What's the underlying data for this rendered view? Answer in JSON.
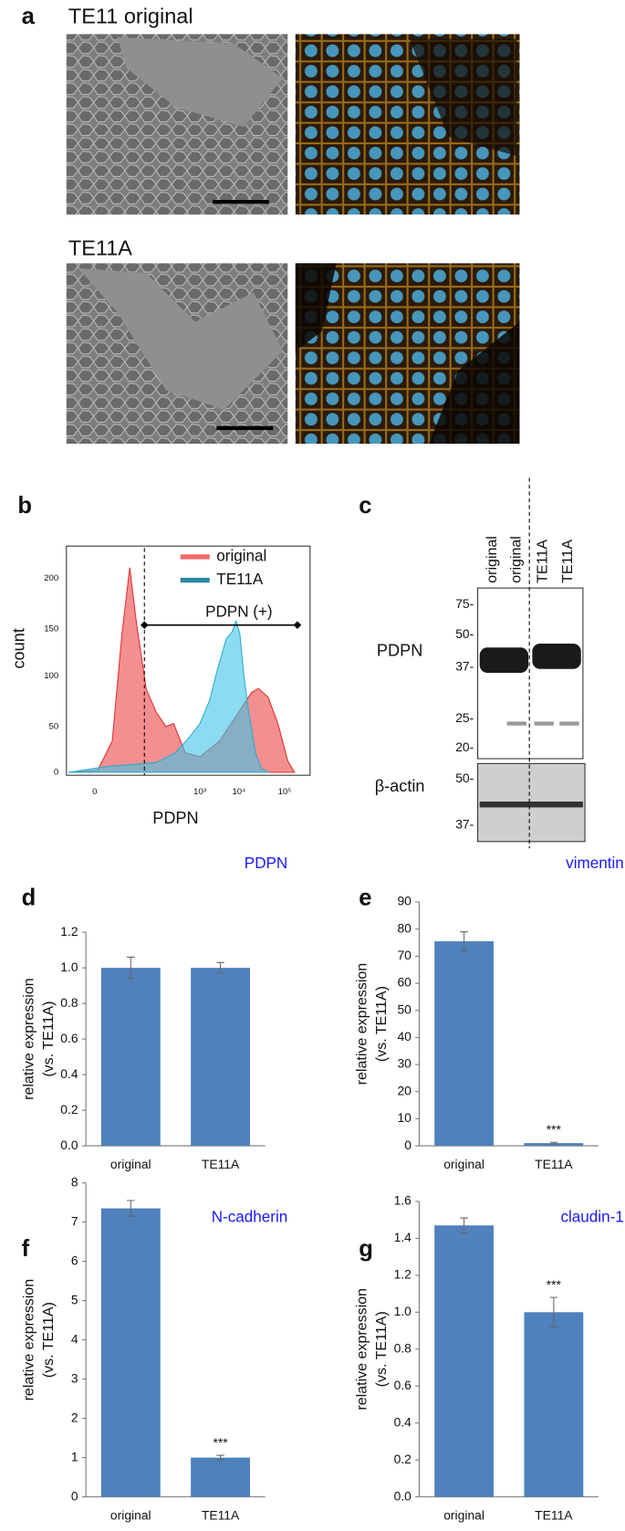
{
  "panels": {
    "a": {
      "label": "a",
      "rows": [
        {
          "title": "TE11 original"
        },
        {
          "title": "TE11A"
        }
      ]
    },
    "b": {
      "label": "b",
      "ylabel": "count",
      "xlabel": "PDPN",
      "yticks": [
        200,
        150,
        100,
        50,
        0
      ],
      "xtick_labels": [
        "0",
        "10³",
        "10⁴",
        "10⁵"
      ],
      "legend": [
        {
          "name": "original",
          "color": "#f06a6a"
        },
        {
          "name": "TE11A",
          "color": "#2a8aa0"
        }
      ],
      "annotation": "PDPN (+)"
    },
    "c": {
      "label": "c",
      "lanes": [
        "original",
        "original",
        "TE11A",
        "TE11A"
      ],
      "blots": [
        {
          "name": "PDPN",
          "markers": [
            "75-",
            "50-",
            "37-",
            "25-",
            "20-"
          ]
        },
        {
          "name": "β-actin",
          "markers": [
            "50-",
            "37-"
          ]
        }
      ]
    }
  },
  "chart_data": [
    {
      "type": "bar",
      "panel": "d",
      "title": "PDPN",
      "title_color": "#1a1aff",
      "ylabel": [
        "relative expression",
        "(vs. TE11A)"
      ],
      "categories": [
        "original",
        "TE11A"
      ],
      "values": [
        1.0,
        1.0
      ],
      "errors": [
        0.06,
        0.03
      ],
      "color": "#4f81bd",
      "ylim": [
        0,
        1.2
      ],
      "yticks": [
        {
          "value": 0,
          "label": "0.0"
        },
        0.2,
        0.4,
        0.6,
        0.8,
        {
          "value": 1,
          "label": "1.0"
        },
        1.2
      ]
    },
    {
      "type": "bar",
      "panel": "e",
      "title": "vimentin",
      "title_color": "#1a1aff",
      "ylabel": [
        "relative expression",
        "(vs. TE11A)"
      ],
      "categories": [
        "original",
        "TE11A"
      ],
      "values": [
        75.5,
        1.0
      ],
      "errors": [
        3.5,
        0.3
      ],
      "annotations": [
        null,
        "***"
      ],
      "color": "#4f81bd",
      "ylim": [
        0,
        90
      ],
      "yticks": [
        0,
        10,
        20,
        30,
        40,
        50,
        60,
        70,
        80,
        90
      ]
    },
    {
      "type": "bar",
      "panel": "f",
      "title": "N-cadherin",
      "title_color": "#1a1aff",
      "ylabel": [
        "relative expression",
        "(vs. TE11A)"
      ],
      "categories": [
        "original",
        "TE11A"
      ],
      "values": [
        7.35,
        1.0
      ],
      "errors": [
        0.2,
        0.06
      ],
      "annotations": [
        null,
        "***"
      ],
      "color": "#4f81bd",
      "ylim": [
        0,
        8
      ],
      "yticks": [
        0,
        1,
        2,
        3,
        4,
        5,
        6,
        7,
        8
      ]
    },
    {
      "type": "bar",
      "panel": "g",
      "title": "claudin-1",
      "title_color": "#1a1aff",
      "ylabel": [
        "relative expression",
        "(vs. TE11A)"
      ],
      "categories": [
        "original",
        "TE11A"
      ],
      "values": [
        1.47,
        1.0
      ],
      "errors": [
        0.04,
        0.08
      ],
      "annotations": [
        null,
        "***"
      ],
      "color": "#4f81bd",
      "ylim": [
        0,
        1.6
      ],
      "yticks": [
        {
          "value": 0,
          "label": "0.0"
        },
        0.2,
        0.4,
        0.6,
        0.8,
        {
          "value": 1,
          "label": "1.0"
        },
        1.2,
        1.4,
        1.6
      ]
    }
  ]
}
